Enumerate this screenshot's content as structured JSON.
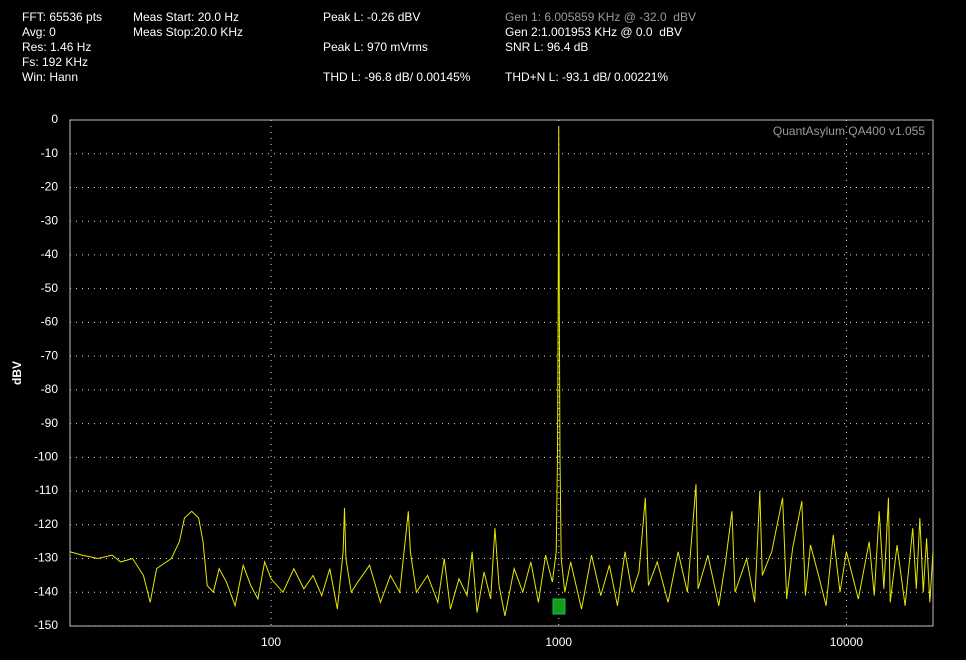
{
  "chart_data": {
    "type": "line",
    "info": [
      "FFT: 65536 pts",
      "Avg: 0",
      "Res: 1.46 Hz",
      "Fs: 192 KHz",
      "Win: Hann",
      "Meas Start: 20.0 Hz",
      "Meas Stop:20.0 KHz",
      "Peak L: -0.26 dBV",
      "Peak L: 970 mVrms",
      "THD L: -96.8 dB/ 0.00145%",
      "Gen 1: 6.005859 KHz @ -32.0  dBV",
      "Gen 2:1.001953 KHz @ 0.0  dBV",
      "SNR L: 96.4 dB",
      "THD+N L: -93.1 dB/ 0.00221%"
    ],
    "watermark": "QuantAsylum QA400 v1.055",
    "y_label": "dBV",
    "log_x": true,
    "grid": true,
    "color": "#e8e800",
    "xlim": [
      20,
      20000
    ],
    "xticks": [
      100,
      1000,
      10000
    ],
    "ylim": [
      -150,
      0
    ],
    "yticks": [
      0,
      -10,
      -20,
      -30,
      -40,
      -50,
      -60,
      -70,
      -80,
      -90,
      -100,
      -110,
      -120,
      -130,
      -140,
      -150
    ],
    "x": [
      20,
      22,
      25,
      28,
      30,
      33,
      36,
      38,
      40,
      45,
      48,
      50,
      53,
      56,
      58,
      60,
      63,
      66,
      70,
      75,
      80,
      85,
      90,
      95,
      100,
      110,
      120,
      130,
      140,
      150,
      160,
      170,
      178,
      180,
      182,
      190,
      200,
      220,
      240,
      260,
      280,
      295,
      300,
      305,
      320,
      350,
      380,
      400,
      420,
      450,
      480,
      500,
      520,
      550,
      580,
      600,
      620,
      650,
      700,
      750,
      800,
      850,
      900,
      950,
      980,
      990,
      995,
      1000,
      1005,
      1010,
      1020,
      1050,
      1100,
      1200,
      1300,
      1400,
      1500,
      1600,
      1700,
      1800,
      1900,
      2000,
      2050,
      2200,
      2400,
      2600,
      2800,
      3000,
      3050,
      3300,
      3600,
      3800,
      4000,
      4100,
      4500,
      4800,
      5000,
      5100,
      5500,
      6000,
      6200,
      6500,
      7000,
      7200,
      7500,
      8000,
      8500,
      9000,
      9500,
      10000,
      11000,
      12000,
      12500,
      13000,
      13500,
      14000,
      14200,
      15000,
      16000,
      17000,
      17500,
      18000,
      18500,
      19000,
      19500,
      20000
    ],
    "values": [
      -128,
      -129,
      -130,
      -129,
      -131,
      -130,
      -135,
      -143,
      -133,
      -130,
      -125,
      -118,
      -116,
      -118,
      -125,
      -138,
      -140,
      -133,
      -137,
      -144,
      -132,
      -138,
      -142,
      -131,
      -136,
      -140,
      -133,
      -139,
      -135,
      -141,
      -133,
      -145,
      -128,
      -115,
      -130,
      -140,
      -137,
      -132,
      -143,
      -135,
      -140,
      -122,
      -116,
      -128,
      -140,
      -135,
      -143,
      -130,
      -145,
      -136,
      -141,
      -128,
      -146,
      -134,
      -142,
      -121,
      -138,
      -147,
      -133,
      -140,
      -131,
      -143,
      -129,
      -137,
      -128,
      -100,
      -60,
      -2,
      -60,
      -100,
      -130,
      -140,
      -131,
      -145,
      -129,
      -141,
      -132,
      -144,
      -128,
      -140,
      -134,
      -112,
      -138,
      -131,
      -143,
      -128,
      -140,
      -108,
      -139,
      -129,
      -144,
      -131,
      -116,
      -140,
      -130,
      -143,
      -110,
      -135,
      -128,
      -112,
      -142,
      -127,
      -113,
      -141,
      -126,
      -135,
      -144,
      -123,
      -140,
      -128,
      -142,
      -125,
      -141,
      -116,
      -139,
      -112,
      -143,
      -126,
      -144,
      -121,
      -139,
      -118,
      -140,
      -124,
      -143,
      -128
    ]
  }
}
